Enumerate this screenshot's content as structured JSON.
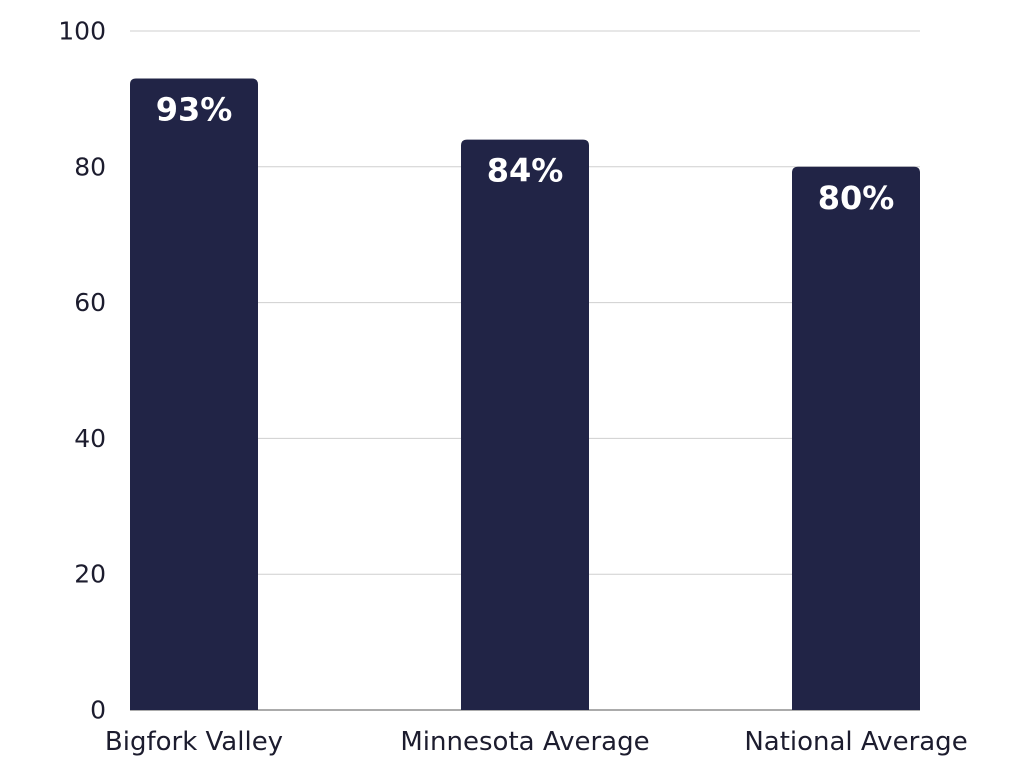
{
  "chart_data": {
    "type": "bar",
    "categories": [
      "Bigfork Valley",
      "Minnesota Average",
      "National Average"
    ],
    "values": [
      93,
      84,
      80
    ],
    "data_labels": [
      "93%",
      "84%",
      "80%"
    ],
    "title": "",
    "xlabel": "",
    "ylabel": "",
    "ylim": [
      0,
      100
    ],
    "yticks": [
      0,
      20,
      40,
      60,
      80,
      100
    ],
    "ytick_labels": [
      "0",
      "20",
      "40",
      "60",
      "80",
      "100"
    ],
    "grid": "horizontal",
    "legend": "none",
    "colors": {
      "bar": "#212446",
      "grid": "#cfcfcf",
      "text": "#1c1c2e",
      "label": "#ffffff"
    }
  }
}
